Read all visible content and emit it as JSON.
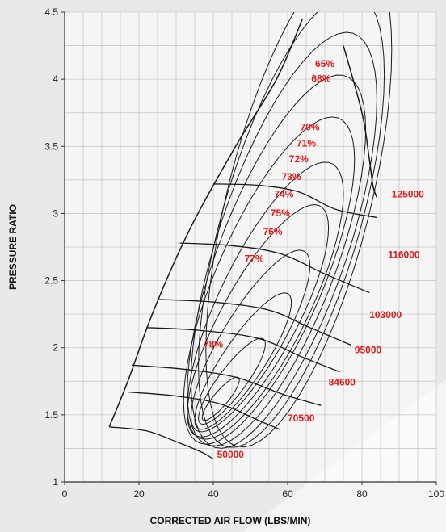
{
  "chart_data": {
    "type": "line",
    "title": "",
    "xlabel": "CORRECTED AIR FLOW (LBS/MIN)",
    "ylabel": "PRESSURE RATIO",
    "xlim": [
      0,
      100
    ],
    "ylim": [
      1,
      4.5
    ],
    "x_ticks": [
      "0",
      "20",
      "40",
      "60",
      "80",
      "100"
    ],
    "y_ticks": [
      "1",
      "1.5",
      "2",
      "2.5",
      "3",
      "3.5",
      "4",
      "4.5"
    ],
    "grid": true,
    "line_color": "#1a1a1a",
    "label_color": "#e41a1a",
    "surge_line": {
      "x": [
        12,
        17,
        24,
        34,
        46,
        57,
        64
      ],
      "y": [
        1.41,
        1.75,
        2.28,
        2.9,
        3.5,
        4.0,
        4.45
      ]
    },
    "choke_line": {
      "x": [
        75,
        80,
        82,
        83,
        84
      ],
      "y": [
        4.25,
        3.75,
        3.4,
        3.2,
        3.12
      ]
    },
    "speed_lines": [
      {
        "label": "50000",
        "x": [
          12,
          22,
          30,
          37,
          40
        ],
        "y": [
          1.41,
          1.38,
          1.3,
          1.22,
          1.17
        ]
      },
      {
        "label": "70500",
        "x": [
          17,
          30,
          42,
          52,
          58
        ],
        "y": [
          1.67,
          1.64,
          1.58,
          1.46,
          1.39
        ]
      },
      {
        "label": "84600",
        "x": [
          18,
          32,
          46,
          59,
          69
        ],
        "y": [
          1.87,
          1.84,
          1.78,
          1.65,
          1.57
        ]
      },
      {
        "label": "95000",
        "x": [
          22,
          36,
          52,
          64,
          74
        ],
        "y": [
          2.15,
          2.13,
          2.07,
          1.93,
          1.82
        ]
      },
      {
        "label": "103000",
        "x": [
          25,
          40,
          55,
          66,
          77
        ],
        "y": [
          2.36,
          2.34,
          2.28,
          2.15,
          2.02
        ]
      },
      {
        "label": "116000",
        "x": [
          31,
          45,
          58,
          70,
          82
        ],
        "y": [
          2.78,
          2.76,
          2.7,
          2.55,
          2.41
        ]
      },
      {
        "label": "125000",
        "x": [
          40,
          52,
          63,
          73,
          84
        ],
        "y": [
          3.22,
          3.21,
          3.16,
          3.03,
          2.97
        ]
      }
    ],
    "speed_label_pos": [
      {
        "x": 41,
        "y": 1.18
      },
      {
        "x": 60,
        "y": 1.45
      },
      {
        "x": 71,
        "y": 1.72
      },
      {
        "x": 78,
        "y": 1.96
      },
      {
        "x": 82,
        "y": 2.22
      },
      {
        "x": 87,
        "y": 2.67
      },
      {
        "x": 88,
        "y": 3.12
      }
    ],
    "efficiency_islands": [
      {
        "label": "65%",
        "label_pos": {
          "x": 70,
          "y": 4.09
        }
      },
      {
        "label": "68%",
        "label_pos": {
          "x": 69,
          "y": 3.98
        }
      },
      {
        "label": "70%",
        "label_pos": {
          "x": 66,
          "y": 3.62
        }
      },
      {
        "label": "71%",
        "label_pos": {
          "x": 65,
          "y": 3.5
        }
      },
      {
        "label": "72%",
        "label_pos": {
          "x": 63,
          "y": 3.38
        }
      },
      {
        "label": "73%",
        "label_pos": {
          "x": 61,
          "y": 3.25
        }
      },
      {
        "label": "74%",
        "label_pos": {
          "x": 59,
          "y": 3.12
        }
      },
      {
        "label": "75%",
        "label_pos": {
          "x": 58,
          "y": 2.98
        }
      },
      {
        "label": "76%",
        "label_pos": {
          "x": 56,
          "y": 2.84
        }
      },
      {
        "label": "77%",
        "label_pos": {
          "x": 51,
          "y": 2.64
        }
      },
      {
        "label": "78%",
        "label_pos": {
          "x": 40,
          "y": 2.0
        }
      }
    ],
    "efficiency_contours": [
      {
        "cx": 42,
        "cy": 1.62,
        "rx": 5,
        "ry": 0.08,
        "tilt": 1.0
      },
      {
        "cx": 45,
        "cy": 1.75,
        "rx": 9,
        "ry": 0.16,
        "tilt": 1.1
      },
      {
        "cx": 48,
        "cy": 1.9,
        "rx": 13,
        "ry": 0.26,
        "tilt": 1.2
      },
      {
        "cx": 50,
        "cy": 2.05,
        "rx": 16,
        "ry": 0.38,
        "tilt": 1.25
      },
      {
        "cx": 52,
        "cy": 2.2,
        "rx": 19,
        "ry": 0.52,
        "tilt": 1.3
      },
      {
        "cx": 54,
        "cy": 2.35,
        "rx": 21,
        "ry": 0.66,
        "tilt": 1.35
      },
      {
        "cx": 55,
        "cy": 2.5,
        "rx": 23,
        "ry": 0.82,
        "tilt": 1.4
      },
      {
        "cx": 57,
        "cy": 2.65,
        "rx": 24,
        "ry": 0.98,
        "tilt": 1.45
      },
      {
        "cx": 59,
        "cy": 2.8,
        "rx": 25,
        "ry": 1.14,
        "tilt": 1.5
      },
      {
        "cx": 61,
        "cy": 2.95,
        "rx": 25,
        "ry": 1.3,
        "tilt": 1.55
      },
      {
        "cx": 63,
        "cy": 3.1,
        "rx": 25,
        "ry": 1.46,
        "tilt": 1.6
      }
    ]
  }
}
